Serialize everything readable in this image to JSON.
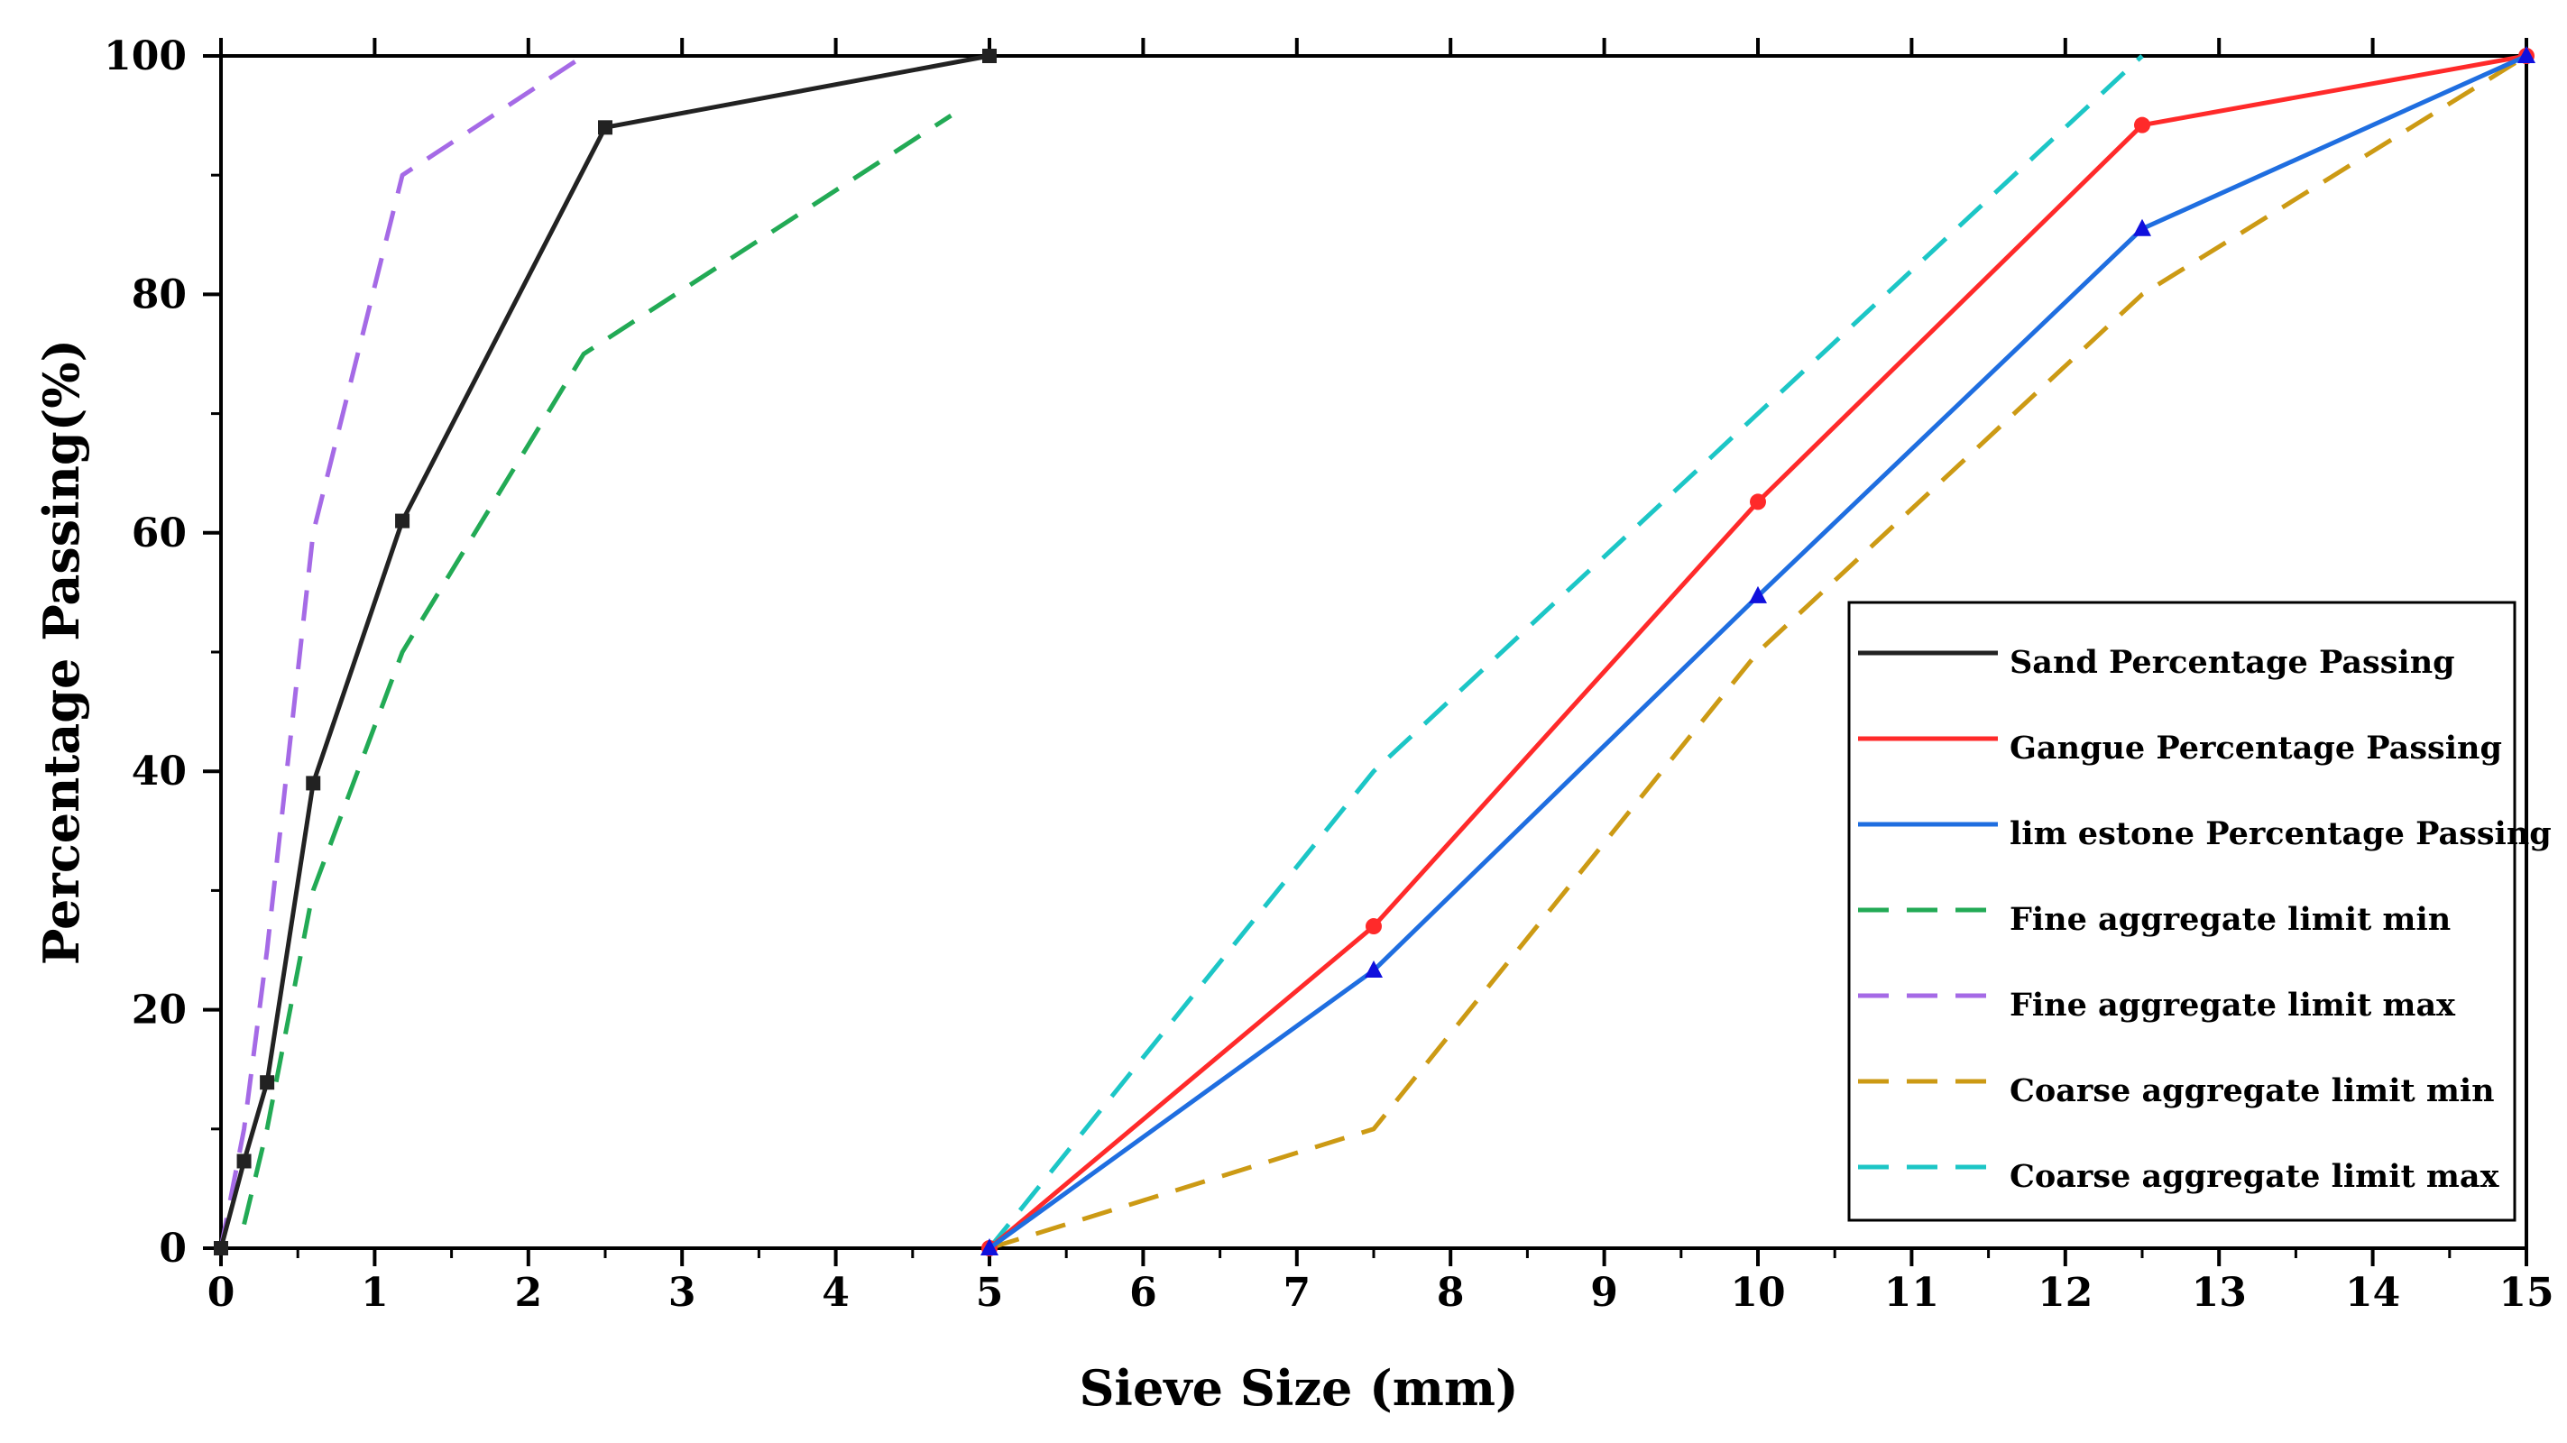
{
  "chart_data": {
    "type": "line",
    "title": "",
    "xlabel": "Sieve Size (mm)",
    "ylabel": "Percentage Passing(%)",
    "xlim": [
      0,
      15
    ],
    "ylim": [
      0,
      100
    ],
    "x_ticks": [
      "0",
      "1",
      "2",
      "3",
      "4",
      "5",
      "6",
      "7",
      "8",
      "9",
      "10",
      "11",
      "12",
      "13",
      "14",
      "15"
    ],
    "y_ticks": [
      "0",
      "20",
      "40",
      "60",
      "80",
      "100"
    ],
    "grid": false,
    "legend_position": "right",
    "series": [
      {
        "name": "Sand Percentage Passing",
        "color": "#222222",
        "dashed": false,
        "marker": "square",
        "x": [
          0,
          0.15,
          0.3,
          0.6,
          1.18,
          2.5,
          5
        ],
        "y": [
          0,
          7.3,
          13.9,
          39,
          61,
          94,
          100
        ]
      },
      {
        "name": "Gangue Percentage Passing",
        "color": "#ff2a2a",
        "dashed": false,
        "marker": "circle",
        "x": [
          5,
          7.5,
          10,
          12.5,
          15
        ],
        "y": [
          0,
          27,
          62.6,
          94.2,
          100
        ]
      },
      {
        "name": "lim estone Percentage Passing",
        "color": "#1f6ee0",
        "dashed": false,
        "marker": "triangle",
        "x": [
          5,
          7.5,
          10,
          12.5,
          15
        ],
        "y": [
          0,
          23.3,
          54.7,
          85.5,
          100
        ]
      },
      {
        "name": "Fine aggregate limit min",
        "color": "#22aa55",
        "dashed": true,
        "marker": "none",
        "x": [
          0.15,
          0.3,
          0.6,
          1.18,
          2.36,
          4.75
        ],
        "y": [
          2,
          10,
          30,
          50,
          75,
          95
        ]
      },
      {
        "name": "Fine aggregate limit max",
        "color": "#a56ae6",
        "dashed": true,
        "marker": "none",
        "x": [
          0,
          0.15,
          0.3,
          0.6,
          1.18,
          2.36
        ],
        "y": [
          0,
          10,
          25,
          60,
          90,
          100
        ]
      },
      {
        "name": "Coarse aggregate limit min",
        "color": "#cc9a14",
        "dashed": true,
        "marker": "none",
        "x": [
          5,
          7.5,
          10,
          12.5,
          15
        ],
        "y": [
          0,
          10,
          50,
          80,
          100
        ]
      },
      {
        "name": "Coarse aggregate limit max",
        "color": "#1cc6c6",
        "dashed": true,
        "marker": "none",
        "x": [
          5,
          7.5,
          10,
          12.5
        ],
        "y": [
          0,
          40,
          70,
          100
        ]
      }
    ]
  }
}
